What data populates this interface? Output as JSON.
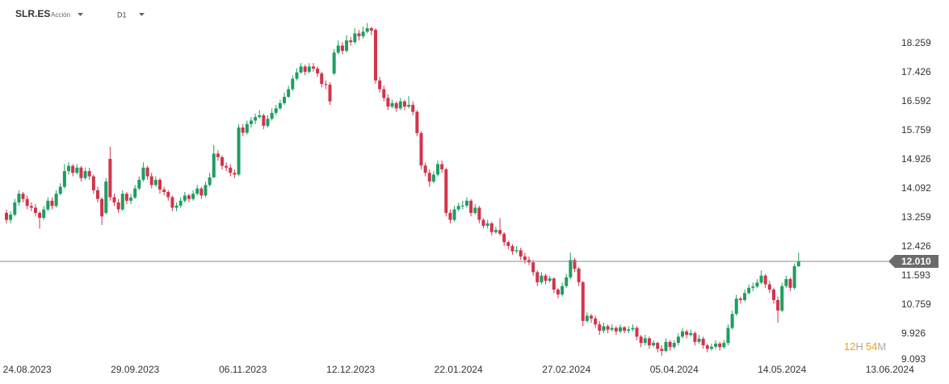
{
  "header": {
    "symbol": "SLR.ES",
    "kind": "Acción",
    "timeframe": "D1"
  },
  "countdown": {
    "hours": 12,
    "hours_unit": "H",
    "minutes": 54,
    "minutes_unit": "M"
  },
  "chart_data": {
    "type": "candlestick",
    "up_color": "#1e9e61",
    "down_color": "#d2344b",
    "ylim": [
      9.093,
      19.509
    ],
    "yticks": [
      18.259,
      17.426,
      16.592,
      15.759,
      14.926,
      14.092,
      13.259,
      12.426,
      11.593,
      10.759,
      9.926,
      9.093
    ],
    "last_price": {
      "value": 12.01,
      "label": "12.010"
    },
    "categories": [
      null,
      null,
      null,
      null,
      null,
      "24.08.2023",
      null,
      null,
      null,
      null,
      null,
      null,
      null,
      null,
      null,
      null,
      null,
      null,
      null,
      null,
      null,
      null,
      null,
      null,
      null,
      null,
      null,
      null,
      null,
      null,
      null,
      "29.09.2023",
      null,
      null,
      null,
      null,
      null,
      null,
      null,
      null,
      null,
      null,
      null,
      null,
      null,
      null,
      null,
      null,
      null,
      null,
      null,
      null,
      null,
      null,
      null,
      null,
      null,
      "06.11.2023",
      null,
      null,
      null,
      null,
      null,
      null,
      null,
      null,
      null,
      null,
      null,
      null,
      null,
      null,
      null,
      null,
      null,
      null,
      null,
      null,
      null,
      null,
      null,
      null,
      null,
      "12.12.2023",
      null,
      null,
      null,
      null,
      null,
      null,
      null,
      null,
      null,
      null,
      null,
      null,
      null,
      null,
      null,
      null,
      null,
      null,
      null,
      null,
      null,
      null,
      null,
      null,
      null,
      "22.01.2024",
      null,
      null,
      null,
      null,
      null,
      null,
      null,
      null,
      null,
      null,
      null,
      null,
      null,
      null,
      null,
      null,
      null,
      null,
      null,
      null,
      null,
      null,
      null,
      null,
      null,
      "27.02.2024",
      null,
      null,
      null,
      null,
      null,
      null,
      null,
      null,
      null,
      null,
      null,
      null,
      null,
      null,
      null,
      null,
      null,
      null,
      null,
      null,
      null,
      null,
      null,
      null,
      null,
      "05.04.2024",
      null,
      null,
      null,
      null,
      null,
      null,
      null,
      null,
      null,
      null,
      null,
      null,
      null,
      null,
      null,
      null,
      null,
      null,
      null,
      null,
      null,
      null,
      null,
      null,
      null,
      "14.05.2024",
      null,
      null,
      null,
      null,
      null,
      null,
      null,
      null,
      null,
      null,
      null,
      null,
      null,
      null,
      null,
      null,
      null,
      null,
      null,
      null,
      null,
      null,
      null,
      null,
      null,
      "13.06.2024"
    ],
    "candles": [
      [
        13.4,
        13.5,
        13.1,
        13.2
      ],
      [
        13.2,
        13.45,
        13.1,
        13.35
      ],
      [
        13.35,
        13.8,
        13.3,
        13.7
      ],
      [
        13.7,
        14.05,
        13.6,
        13.95
      ],
      [
        13.95,
        14.0,
        13.7,
        13.8
      ],
      [
        13.8,
        13.9,
        13.5,
        13.6
      ],
      [
        13.6,
        13.7,
        13.45,
        13.55
      ],
      [
        13.55,
        13.65,
        13.3,
        13.4
      ],
      [
        13.4,
        13.45,
        12.95,
        13.26
      ],
      [
        13.26,
        13.6,
        13.2,
        13.5
      ],
      [
        13.5,
        13.85,
        13.45,
        13.75
      ],
      [
        13.75,
        13.85,
        13.5,
        13.6
      ],
      [
        13.6,
        14.05,
        13.55,
        13.95
      ],
      [
        13.95,
        14.25,
        13.9,
        14.15
      ],
      [
        14.15,
        14.8,
        14.1,
        14.6
      ],
      [
        14.6,
        14.85,
        14.5,
        14.75
      ],
      [
        14.75,
        14.8,
        14.45,
        14.55
      ],
      [
        14.55,
        14.8,
        14.5,
        14.7
      ],
      [
        14.7,
        14.75,
        14.3,
        14.4
      ],
      [
        14.4,
        14.7,
        14.35,
        14.6
      ],
      [
        14.6,
        14.7,
        14.35,
        14.45
      ],
      [
        14.45,
        14.5,
        13.95,
        14.05
      ],
      [
        14.05,
        14.15,
        13.7,
        13.8
      ],
      [
        13.8,
        13.85,
        13.05,
        13.3
      ],
      [
        13.4,
        14.4,
        13.35,
        14.3
      ],
      [
        14.95,
        15.3,
        13.75,
        13.85
      ],
      [
        13.85,
        13.95,
        13.6,
        13.7
      ],
      [
        13.7,
        13.8,
        13.4,
        13.5
      ],
      [
        13.5,
        14.05,
        13.45,
        13.95
      ],
      [
        13.95,
        14.0,
        13.65,
        13.75
      ],
      [
        13.75,
        13.95,
        13.65,
        13.84
      ],
      [
        13.84,
        14.2,
        13.8,
        14.1
      ],
      [
        14.1,
        14.45,
        14.05,
        14.35
      ],
      [
        14.35,
        14.85,
        14.3,
        14.7
      ],
      [
        14.7,
        14.75,
        14.35,
        14.45
      ],
      [
        14.45,
        14.55,
        14.1,
        14.2
      ],
      [
        14.2,
        14.45,
        14.15,
        14.35
      ],
      [
        14.35,
        14.4,
        13.95,
        14.07
      ],
      [
        14.07,
        14.15,
        13.9,
        14.0
      ],
      [
        14.0,
        14.05,
        13.75,
        13.85
      ],
      [
        13.85,
        13.9,
        13.45,
        13.55
      ],
      [
        13.55,
        13.7,
        13.45,
        13.61
      ],
      [
        13.61,
        13.85,
        13.55,
        13.75
      ],
      [
        13.75,
        14.0,
        13.7,
        13.9
      ],
      [
        13.9,
        13.95,
        13.7,
        13.8
      ],
      [
        13.8,
        14.05,
        13.75,
        13.95
      ],
      [
        13.95,
        14.2,
        13.9,
        14.1
      ],
      [
        14.1,
        14.15,
        13.8,
        13.9
      ],
      [
        13.9,
        14.3,
        13.85,
        14.2
      ],
      [
        14.2,
        14.55,
        14.15,
        14.42
      ],
      [
        14.42,
        15.35,
        14.4,
        15.1
      ],
      [
        15.1,
        15.2,
        14.9,
        15.0
      ],
      [
        15.0,
        15.05,
        14.65,
        14.75
      ],
      [
        14.75,
        14.85,
        14.6,
        14.7
      ],
      [
        14.7,
        14.8,
        14.45,
        14.55
      ],
      [
        14.55,
        14.65,
        14.4,
        14.5
      ],
      [
        14.5,
        15.95,
        14.45,
        15.85
      ],
      [
        15.85,
        15.95,
        15.6,
        15.7
      ],
      [
        15.7,
        16.05,
        15.65,
        15.95
      ],
      [
        15.95,
        16.15,
        15.85,
        16.05
      ],
      [
        16.05,
        16.25,
        15.95,
        16.15
      ],
      [
        16.15,
        16.35,
        16.1,
        16.2
      ],
      [
        16.2,
        16.25,
        15.8,
        15.9
      ],
      [
        15.9,
        16.2,
        15.85,
        16.1
      ],
      [
        16.1,
        16.4,
        16.05,
        16.27
      ],
      [
        16.27,
        16.5,
        16.2,
        16.4
      ],
      [
        16.4,
        16.65,
        16.35,
        16.55
      ],
      [
        16.55,
        16.85,
        16.5,
        16.73
      ],
      [
        16.73,
        17.05,
        16.7,
        16.95
      ],
      [
        16.95,
        17.35,
        16.9,
        17.25
      ],
      [
        17.25,
        17.55,
        17.2,
        17.43
      ],
      [
        17.43,
        17.7,
        17.4,
        17.6
      ],
      [
        17.6,
        17.65,
        17.35,
        17.45
      ],
      [
        17.45,
        17.7,
        17.4,
        17.6
      ],
      [
        17.6,
        17.7,
        17.45,
        17.54
      ],
      [
        17.54,
        17.6,
        17.3,
        17.4
      ],
      [
        17.4,
        17.45,
        17.0,
        17.1
      ],
      [
        17.1,
        17.2,
        16.95,
        17.08
      ],
      [
        17.08,
        17.15,
        16.5,
        16.6
      ],
      [
        17.4,
        18.1,
        17.35,
        18.0
      ],
      [
        18.0,
        18.35,
        17.95,
        18.2
      ],
      [
        18.2,
        18.3,
        17.95,
        18.05
      ],
      [
        18.05,
        18.5,
        18.0,
        18.35
      ],
      [
        18.35,
        18.45,
        18.2,
        18.3
      ],
      [
        18.3,
        18.7,
        18.25,
        18.55
      ],
      [
        18.55,
        18.65,
        18.35,
        18.47
      ],
      [
        18.47,
        18.75,
        18.4,
        18.6
      ],
      [
        18.6,
        18.85,
        18.55,
        18.7
      ],
      [
        18.7,
        18.75,
        18.5,
        18.63
      ],
      [
        18.65,
        18.7,
        17.1,
        17.2
      ],
      [
        17.2,
        17.3,
        16.85,
        16.95
      ],
      [
        16.95,
        17.05,
        16.6,
        16.7
      ],
      [
        16.7,
        16.8,
        16.35,
        16.45
      ],
      [
        16.45,
        16.65,
        16.4,
        16.55
      ],
      [
        16.55,
        16.6,
        16.3,
        16.4
      ],
      [
        16.4,
        16.7,
        16.35,
        16.6
      ],
      [
        16.6,
        16.65,
        16.35,
        16.45
      ],
      [
        16.45,
        16.75,
        16.4,
        16.5
      ],
      [
        16.5,
        16.6,
        16.2,
        16.3
      ],
      [
        16.3,
        16.35,
        15.6,
        15.69
      ],
      [
        15.69,
        15.75,
        14.65,
        14.76
      ],
      [
        14.76,
        14.85,
        14.45,
        14.55
      ],
      [
        14.55,
        14.65,
        14.15,
        14.3
      ],
      [
        14.3,
        14.6,
        14.25,
        14.5
      ],
      [
        14.5,
        14.9,
        14.45,
        14.8
      ],
      [
        14.8,
        14.9,
        14.55,
        14.65
      ],
      [
        14.65,
        14.7,
        13.3,
        13.4
      ],
      [
        13.4,
        13.5,
        13.1,
        13.2
      ],
      [
        13.2,
        13.6,
        13.15,
        13.5
      ],
      [
        13.5,
        13.7,
        13.45,
        13.6
      ],
      [
        13.6,
        13.75,
        13.5,
        13.61
      ],
      [
        13.61,
        13.85,
        13.55,
        13.75
      ],
      [
        13.75,
        13.8,
        13.3,
        13.4
      ],
      [
        13.4,
        13.65,
        13.35,
        13.55
      ],
      [
        13.55,
        13.6,
        13.1,
        13.2
      ],
      [
        13.2,
        13.25,
        12.95,
        13.03
      ],
      [
        13.03,
        13.2,
        12.95,
        13.1
      ],
      [
        13.1,
        13.15,
        12.75,
        12.85
      ],
      [
        12.85,
        13.0,
        12.8,
        12.91
      ],
      [
        12.91,
        13.25,
        12.75,
        12.8
      ],
      [
        12.8,
        12.85,
        12.45,
        12.56
      ],
      [
        12.56,
        12.6,
        12.35,
        12.45
      ],
      [
        12.45,
        12.5,
        12.2,
        12.3
      ],
      [
        12.3,
        12.45,
        12.25,
        12.33
      ],
      [
        12.33,
        12.4,
        12.05,
        12.15
      ],
      [
        12.15,
        12.25,
        11.95,
        12.05
      ],
      [
        12.05,
        12.15,
        11.9,
        11.98
      ],
      [
        11.98,
        12.05,
        11.6,
        11.7
      ],
      [
        11.7,
        11.75,
        11.3,
        11.41
      ],
      [
        11.41,
        11.7,
        11.35,
        11.6
      ],
      [
        11.6,
        11.65,
        11.35,
        11.45
      ],
      [
        11.45,
        11.6,
        11.4,
        11.52
      ],
      [
        11.52,
        11.55,
        11.1,
        11.2
      ],
      [
        11.2,
        11.25,
        10.95,
        11.06
      ],
      [
        11.06,
        11.4,
        11.0,
        11.3
      ],
      [
        11.3,
        11.65,
        11.25,
        11.55
      ],
      [
        11.55,
        12.26,
        11.5,
        12.05
      ],
      [
        12.05,
        12.1,
        11.7,
        11.8
      ],
      [
        11.8,
        11.85,
        11.3,
        11.41
      ],
      [
        11.41,
        11.45,
        10.15,
        10.3
      ],
      [
        10.3,
        10.55,
        10.25,
        10.45
      ],
      [
        10.45,
        10.5,
        10.25,
        10.37
      ],
      [
        10.37,
        10.45,
        10.1,
        10.2
      ],
      [
        10.2,
        10.3,
        9.9,
        10.02
      ],
      [
        10.02,
        10.25,
        9.95,
        10.15
      ],
      [
        10.15,
        10.2,
        9.95,
        10.05
      ],
      [
        10.05,
        10.2,
        10.0,
        10.1
      ],
      [
        10.1,
        10.15,
        9.9,
        10.0
      ],
      [
        10.0,
        10.2,
        9.95,
        10.12
      ],
      [
        10.12,
        10.15,
        9.95,
        10.02
      ],
      [
        10.02,
        10.15,
        9.95,
        10.06
      ],
      [
        10.06,
        10.2,
        10.0,
        10.1
      ],
      [
        10.1,
        10.15,
        9.75,
        9.85
      ],
      [
        9.85,
        9.9,
        9.55,
        9.67
      ],
      [
        9.67,
        9.9,
        9.6,
        9.8
      ],
      [
        9.8,
        9.85,
        9.5,
        9.6
      ],
      [
        9.6,
        9.75,
        9.55,
        9.67
      ],
      [
        9.67,
        9.7,
        9.4,
        9.5
      ],
      [
        9.5,
        9.6,
        9.3,
        9.44
      ],
      [
        9.44,
        9.8,
        9.4,
        9.7
      ],
      [
        9.7,
        9.75,
        9.45,
        9.55
      ],
      [
        9.55,
        9.75,
        9.5,
        9.67
      ],
      [
        9.67,
        9.95,
        9.6,
        9.85
      ],
      [
        9.85,
        10.1,
        9.8,
        10.0
      ],
      [
        10.0,
        10.05,
        9.8,
        9.9
      ],
      [
        9.9,
        10.05,
        9.85,
        9.95
      ],
      [
        9.95,
        10.0,
        9.6,
        9.7
      ],
      [
        9.7,
        9.9,
        9.65,
        9.79
      ],
      [
        9.79,
        9.85,
        9.5,
        9.6
      ],
      [
        9.6,
        9.65,
        9.4,
        9.5
      ],
      [
        9.5,
        9.65,
        9.45,
        9.56
      ],
      [
        9.56,
        9.75,
        9.5,
        9.65
      ],
      [
        9.65,
        9.7,
        9.45,
        9.55
      ],
      [
        9.55,
        9.75,
        9.5,
        9.67
      ],
      [
        9.67,
        10.2,
        9.6,
        10.1
      ],
      [
        10.1,
        10.6,
        10.05,
        10.5
      ],
      [
        10.5,
        11.05,
        10.45,
        10.94
      ],
      [
        10.94,
        11.0,
        10.8,
        10.9
      ],
      [
        10.9,
        11.2,
        10.85,
        11.1
      ],
      [
        11.1,
        11.35,
        11.05,
        11.25
      ],
      [
        11.25,
        11.4,
        11.15,
        11.29
      ],
      [
        11.29,
        11.5,
        11.25,
        11.4
      ],
      [
        11.4,
        11.75,
        11.35,
        11.6
      ],
      [
        11.6,
        11.65,
        11.25,
        11.35
      ],
      [
        11.35,
        11.45,
        11.1,
        11.2
      ],
      [
        11.2,
        11.25,
        10.8,
        10.9
      ],
      [
        10.9,
        11.0,
        10.25,
        10.6
      ],
      [
        10.6,
        11.4,
        10.55,
        11.3
      ],
      [
        11.3,
        11.6,
        11.25,
        11.5
      ],
      [
        11.5,
        11.55,
        11.15,
        11.25
      ],
      [
        11.25,
        11.95,
        11.2,
        11.87
      ],
      [
        11.87,
        12.26,
        11.85,
        12.01
      ],
      null,
      null,
      null,
      null,
      null,
      null,
      null,
      null,
      null,
      null,
      null,
      null,
      null,
      null,
      null,
      null,
      null,
      null,
      null,
      null,
      null,
      null
    ]
  }
}
